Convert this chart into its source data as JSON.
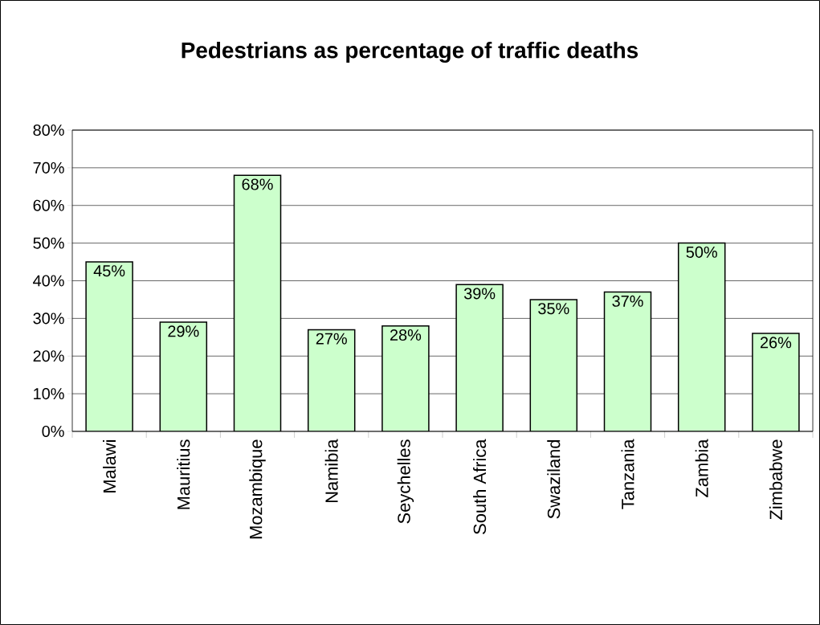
{
  "chart_data": {
    "type": "bar",
    "title": "Pedestrians as percentage of traffic deaths",
    "categories": [
      "Malawi",
      "Mauritius",
      "Mozambique",
      "Namibia",
      "Seychelles",
      "South Africa",
      "Swaziland",
      "Tanzania",
      "Zambia",
      "Zimbabwe"
    ],
    "values": [
      45,
      29,
      68,
      27,
      28,
      39,
      35,
      37,
      50,
      26
    ],
    "value_labels": [
      "45%",
      "29%",
      "68%",
      "27%",
      "28%",
      "39%",
      "35%",
      "37%",
      "50%",
      "26%"
    ],
    "color": "#ccffcc",
    "ylim": [
      0,
      80
    ],
    "yticks": [
      {
        "value": 0,
        "label": "0%"
      },
      {
        "value": 10,
        "label": "10%"
      },
      {
        "value": 20,
        "label": "20%"
      },
      {
        "value": 30,
        "label": "30%"
      },
      {
        "value": 40,
        "label": "40%"
      },
      {
        "value": 50,
        "label": "50%"
      },
      {
        "value": 60,
        "label": "60%"
      },
      {
        "value": 70,
        "label": "70%"
      },
      {
        "value": 80,
        "label": "80%"
      }
    ],
    "grid": "y"
  }
}
